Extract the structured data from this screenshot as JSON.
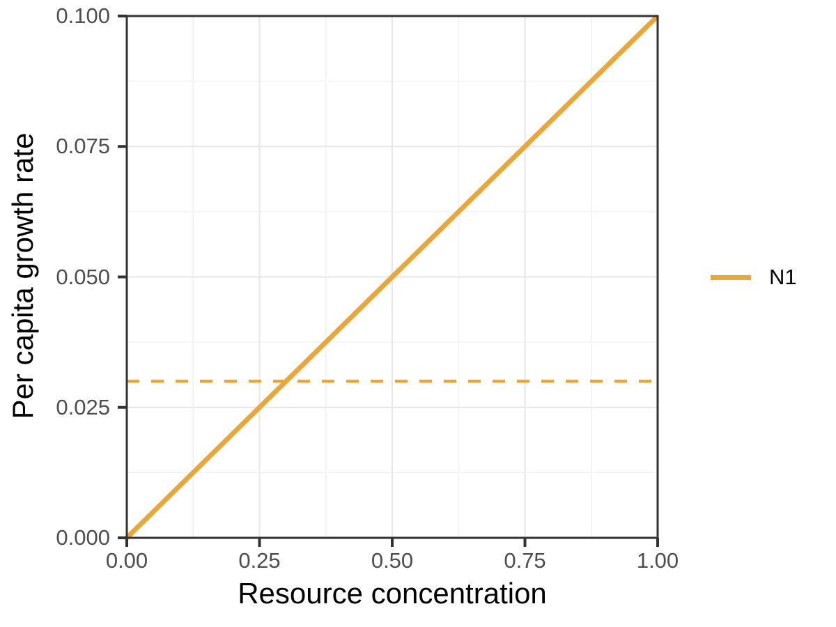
{
  "window": {
    "background": "#FFFFFF"
  },
  "chart_data": {
    "type": "line",
    "title": "",
    "xlabel": "Resource concentration",
    "ylabel": "Per capita growth rate",
    "xlim": [
      0,
      1
    ],
    "ylim": [
      0,
      0.1
    ],
    "x_ticks": {
      "values": [
        0,
        0.25,
        0.5,
        0.75,
        1
      ],
      "labels": [
        "0.00",
        "0.25",
        "0.50",
        "0.75",
        "1.00"
      ]
    },
    "y_ticks": {
      "values": [
        0,
        0.025,
        0.05,
        0.075,
        0.1
      ],
      "labels": [
        "0.000",
        "0.025",
        "0.050",
        "0.075",
        "0.100"
      ]
    },
    "grid": {
      "major": true,
      "minor": true,
      "major_color": "#E7E7E7",
      "minor_color": "#F2F2F2"
    },
    "panel": {
      "background": "#FFFFFF",
      "border_color": "#333333"
    },
    "axis": {
      "tick_color": "#333333",
      "tick_label_color": "#4D4D4D",
      "title_color": "#000000"
    },
    "series": [
      {
        "name": "N1",
        "color": "#E9A63B",
        "style": "solid",
        "points": [
          [
            0,
            0
          ],
          [
            1,
            0.1
          ]
        ]
      }
    ],
    "reference_lines": [
      {
        "orientation": "horizontal",
        "value": 0.03,
        "color": "#E9A63B",
        "style": "dashed"
      }
    ],
    "legend": {
      "position": "right",
      "entries": [
        {
          "label": "N1",
          "color": "#E9A63B",
          "style": "solid"
        }
      ]
    }
  }
}
